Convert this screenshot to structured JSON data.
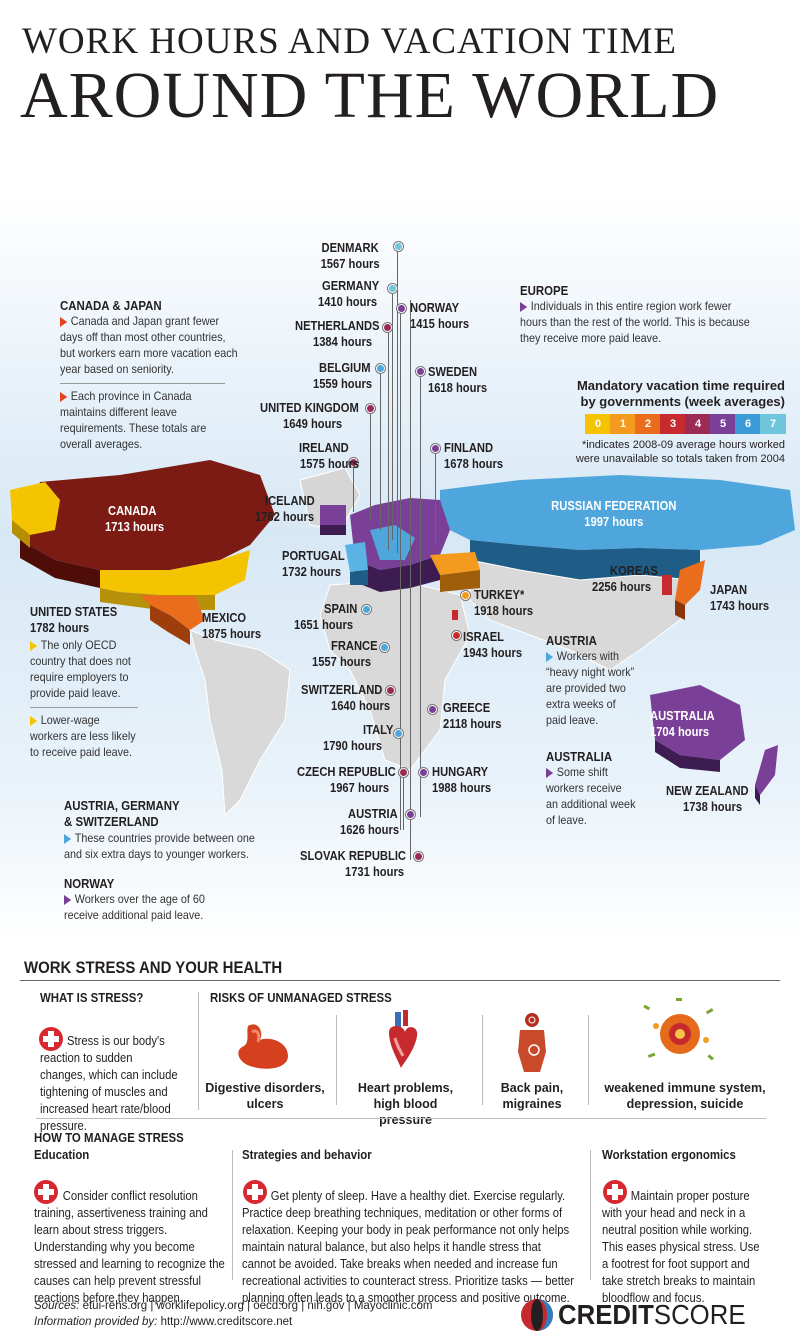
{
  "title": {
    "line1": "WORK HOURS AND VACATION TIME",
    "line2": "AROUND THE WORLD"
  },
  "countries": [
    {
      "key": "denmark",
      "name": "DENMARK",
      "hours": "1567 hours"
    },
    {
      "key": "germany",
      "name": "GERMANY",
      "hours": "1410 hours"
    },
    {
      "key": "norway",
      "name": "NORWAY",
      "hours": "1415 hours"
    },
    {
      "key": "netherlands",
      "name": "NETHERLANDS",
      "hours": "1384 hours"
    },
    {
      "key": "belgium",
      "name": "BELGIUM",
      "hours": "1559 hours"
    },
    {
      "key": "sweden",
      "name": "SWEDEN",
      "hours": "1618 hours"
    },
    {
      "key": "uk",
      "name": "UNITED KINGDOM",
      "hours": "1649 hours"
    },
    {
      "key": "ireland",
      "name": "IRELAND",
      "hours": "1575 hours"
    },
    {
      "key": "finland",
      "name": "FINLAND",
      "hours": "1678 hours"
    },
    {
      "key": "iceland",
      "name": "ICELAND",
      "hours": "1762 hours"
    },
    {
      "key": "canada",
      "name": "CANADA",
      "hours": "1713 hours"
    },
    {
      "key": "russia",
      "name": "RUSSIAN FEDERATION",
      "hours": "1997 hours"
    },
    {
      "key": "portugal",
      "name": "PORTUGAL",
      "hours": "1732 hours"
    },
    {
      "key": "koreas",
      "name": "KOREAS",
      "hours": "2256 hours"
    },
    {
      "key": "turkey",
      "name": "TURKEY*",
      "hours": "1918 hours"
    },
    {
      "key": "japan",
      "name": "JAPAN",
      "hours": "1743 hours"
    },
    {
      "key": "spain",
      "name": "SPAIN",
      "hours": "1651 hours"
    },
    {
      "key": "mexico",
      "name": "MEXICO",
      "hours": "1875 hours"
    },
    {
      "key": "france",
      "name": "FRANCE",
      "hours": "1557 hours"
    },
    {
      "key": "israel",
      "name": "ISRAEL",
      "hours": "1943 hours"
    },
    {
      "key": "us",
      "name": "UNITED STATES",
      "hours": "1782 hours"
    },
    {
      "key": "switzerland",
      "name": "SWITZERLAND",
      "hours": "1640 hours"
    },
    {
      "key": "greece",
      "name": "GREECE",
      "hours": "2118 hours"
    },
    {
      "key": "italy",
      "name": "ITALY",
      "hours": "1790 hours"
    },
    {
      "key": "australia",
      "name": "AUSTRALIA",
      "hours": "1704 hours"
    },
    {
      "key": "czech",
      "name": "CZECH REPUBLIC",
      "hours": "1967 hours"
    },
    {
      "key": "hungary",
      "name": "HUNGARY",
      "hours": "1988 hours"
    },
    {
      "key": "newzealand",
      "name": "NEW ZEALAND",
      "hours": "1738 hours"
    },
    {
      "key": "austria",
      "name": "AUSTRIA",
      "hours": "1626 hours"
    },
    {
      "key": "slovak",
      "name": "SLOVAK REPUBLIC",
      "hours": "1731 hours"
    }
  ],
  "notes": {
    "canada_japan": {
      "title": "CANADA & JAPAN",
      "p1": "Canada and Japan grant fewer days off than most other countries, but workers earn more vacation each year based on seniority.",
      "p2": "Each province in Canada maintains different leave requirements. These totals are overall averages."
    },
    "europe": {
      "title": "EUROPE",
      "p1": "Individuals in this entire region work fewer hours than the rest of the world. This is because they receive more paid leave."
    },
    "us": {
      "p1": "The only OECD country that does not require employers to provide paid leave.",
      "p2": "Lower-wage workers are less likely to receive paid leave."
    },
    "austria": {
      "title": "AUSTRIA",
      "p1": "Workers with “heavy night work” are provided two extra weeks of paid leave."
    },
    "australia": {
      "title": "AUSTRALIA",
      "p1": "Some shift workers receive an additional week of leave."
    },
    "agsw": {
      "title": "AUSTRIA, GERMANY & SWITZERLAND",
      "p1": "These countries provide between one and six extra days to younger workers."
    },
    "norway": {
      "title": "NORWAY",
      "p1": "Workers over the age of 60 receive additional paid leave."
    }
  },
  "legend": {
    "title1": "Mandatory vacation time required",
    "title2": "by governments (week averages)",
    "levels": [
      "0",
      "1",
      "2",
      "3",
      "4",
      "5",
      "6",
      "7"
    ],
    "colors": [
      "#f5c400",
      "#f39a1f",
      "#ea6c1d",
      "#c6292e",
      "#9b2b55",
      "#7a3f96",
      "#3a9bd6",
      "#6fc6dc"
    ],
    "footnote": "*indicates 2008-09 average hours worked were unavailable so totals taken from 2004"
  },
  "stress": {
    "title": "WORK STRESS AND YOUR HEALTH",
    "what_title": "WHAT IS STRESS?",
    "what_text": "Stress is our body's reaction to sudden changes, which can include tightening of muscles and increased heart rate/blood pressure.",
    "risks_title": "RISKS OF UNMANAGED STRESS",
    "risks": [
      {
        "label": "Digestive disorders, ulcers",
        "icon": "stomach-icon"
      },
      {
        "label": "Heart problems, high blood pressure",
        "icon": "heart-icon"
      },
      {
        "label": "Back pain, migraines",
        "icon": "body-pain-icon"
      },
      {
        "label": "weakened immune system, depression, suicide",
        "icon": "virus-icon"
      }
    ],
    "manage_title": "HOW TO MANAGE STRESS",
    "education_title": "Education",
    "education_text": "Consider conflict resolution training, assertiveness training and learn about stress triggers. Understanding why you become stressed and learning to recognize the causes can help prevent stressful reactions before they happen.",
    "strategies_title": "Strategies and behavior",
    "strategies_text": "Get plenty of sleep. Have a healthy diet. Exercise regularly. Practice deep breathing techniques, meditation or other forms of relaxation. Keeping your body in peak performance not only helps maintain natural balance, but also helps it handle stress that cannot be avoided. Take breaks when needed and increase fun recreational activities to counteract stress. Prioritize tasks — better planning often leads to a smoother process and positive outcome.",
    "ergonomics_title": "Workstation ergonomics",
    "ergonomics_text": "Maintain proper posture with your head and neck in a neutral position while working. This eases physical stress. Use a footrest for foot support and take stretch breaks to maintain bloodflow and focus."
  },
  "footer": {
    "sources_label": "Sources:",
    "sources": "etui-rehs.org | worklifepolicy.org | oecd.org | nih.gov | Mayoclinic.com",
    "info_label": "Information provided by:",
    "info": "http://www.creditscore.net",
    "brand_bold": "CREDIT",
    "brand_light": "SCORE"
  }
}
